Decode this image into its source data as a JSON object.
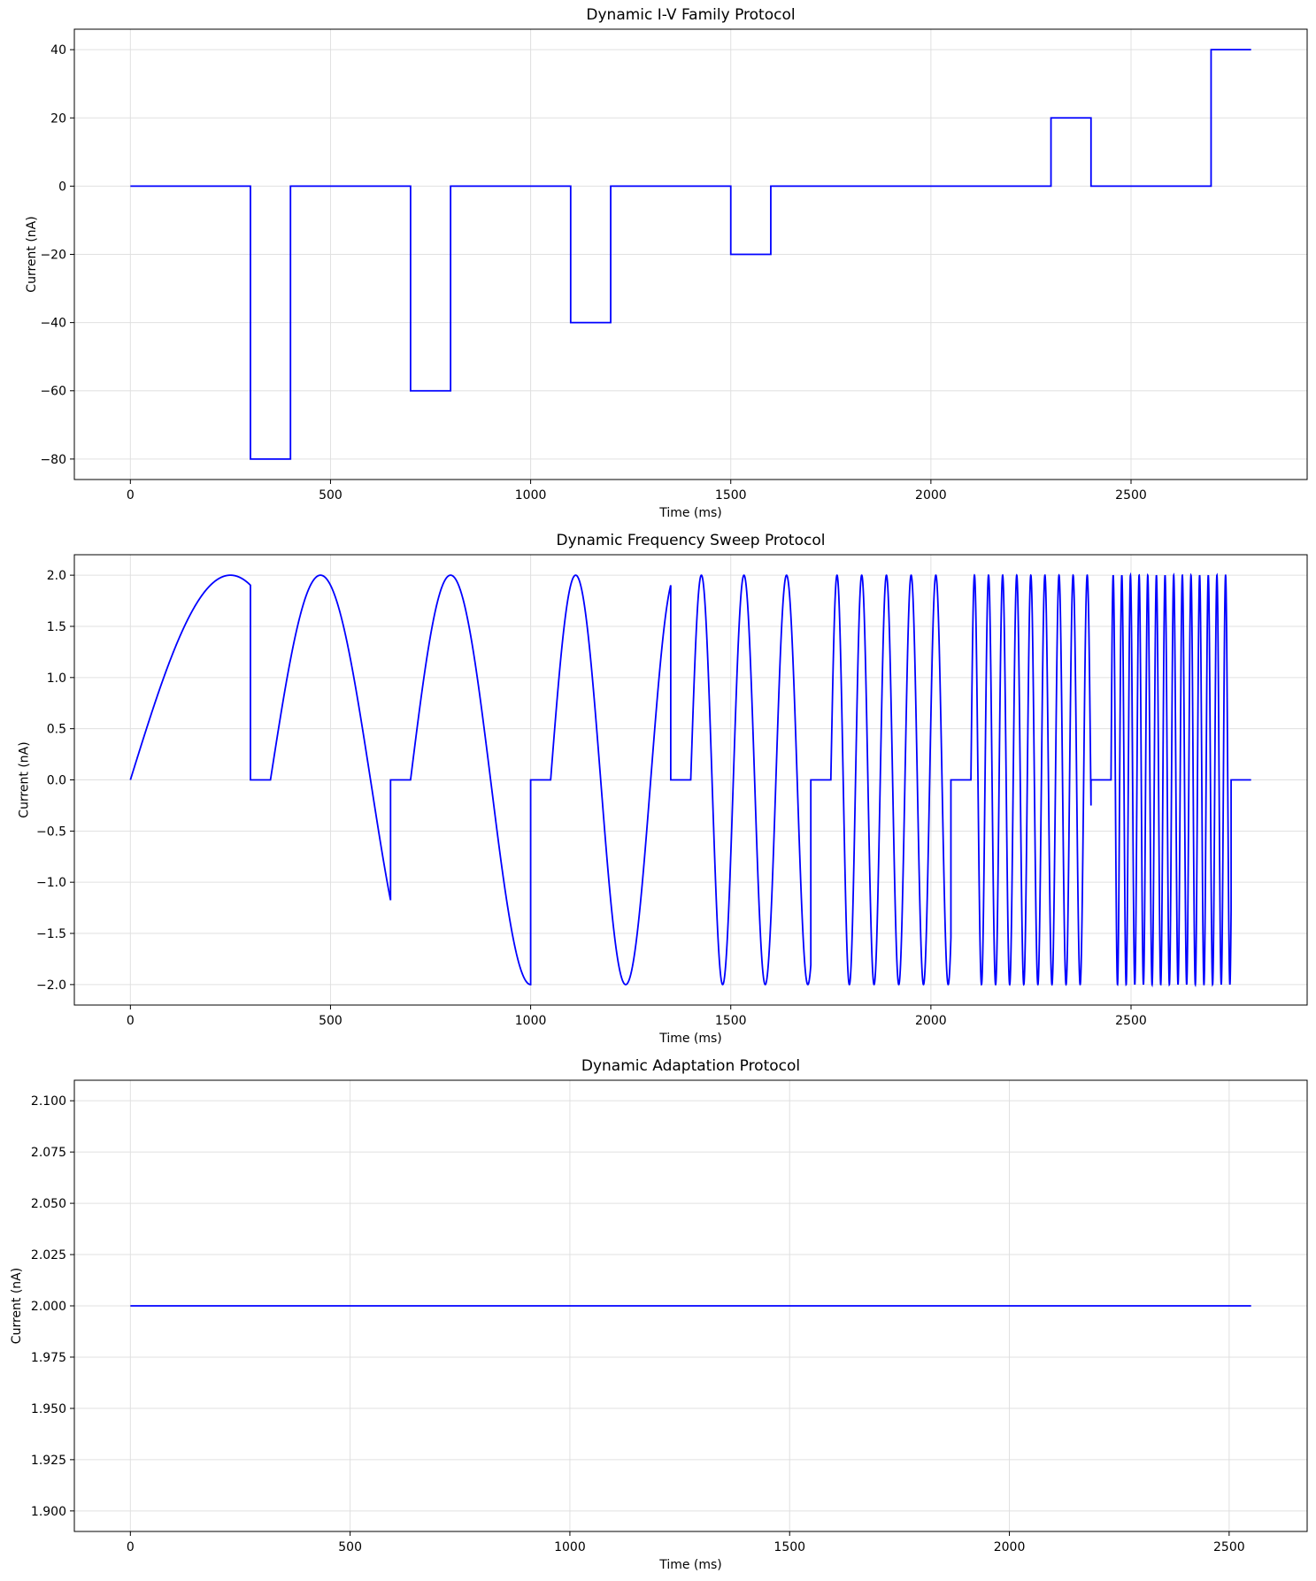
{
  "colors": {
    "line": "#0000ff",
    "grid": "#e0e0e0",
    "axes": "#000000"
  },
  "chart_data": [
    {
      "type": "line",
      "title": "Dynamic I-V Family Protocol",
      "xlabel": "Time (ms)",
      "ylabel": "Current (nA)",
      "xlim": [
        -140,
        2940
      ],
      "ylim": [
        -86,
        46
      ],
      "xticks": [
        0,
        500,
        1000,
        1500,
        2000,
        2500
      ],
      "xtick_labels": [
        "0",
        "500",
        "1000",
        "1500",
        "2000",
        "2500"
      ],
      "yticks": [
        -80,
        -60,
        -40,
        -20,
        0,
        20,
        40
      ],
      "ytick_labels": [
        "−80",
        "−60",
        "−40",
        "−20",
        "0",
        "20",
        "40"
      ],
      "grid": true,
      "series": [
        {
          "color": "#0000ff",
          "kind": "steps",
          "x": [
            0,
            300,
            300,
            400,
            400,
            700,
            700,
            800,
            800,
            1100,
            1100,
            1200,
            1200,
            1500,
            1500,
            1600,
            1600,
            2300,
            2300,
            2400,
            2400,
            2700,
            2700,
            2800
          ],
          "y": [
            0,
            0,
            -80,
            -80,
            0,
            0,
            -60,
            -60,
            0,
            0,
            -40,
            -40,
            0,
            0,
            -20,
            -20,
            0,
            0,
            20,
            20,
            0,
            0,
            40,
            40
          ]
        }
      ]
    },
    {
      "type": "line",
      "title": "Dynamic Frequency Sweep Protocol",
      "xlabel": "Time (ms)",
      "ylabel": "Current (nA)",
      "xlim": [
        -140,
        2940
      ],
      "ylim": [
        -2.2,
        2.2
      ],
      "xticks": [
        0,
        500,
        1000,
        1500,
        2000,
        2500
      ],
      "xtick_labels": [
        "0",
        "500",
        "1000",
        "1500",
        "2000",
        "2500"
      ],
      "yticks": [
        -2.0,
        -1.5,
        -1.0,
        -0.5,
        0.0,
        0.5,
        1.0,
        1.5,
        2.0
      ],
      "ytick_labels": [
        "−2.0",
        "−1.5",
        "−1.0",
        "−0.5",
        "0.0",
        "0.5",
        "1.0",
        "1.5",
        "2.0"
      ],
      "grid": true,
      "series": [
        {
          "color": "#0000ff",
          "kind": "sine_bursts",
          "amplitude": 2.0,
          "bursts": [
            {
              "start": 0,
              "end": 300,
              "freq_hz": 1
            },
            {
              "start": 350,
              "end": 650,
              "freq_hz": 2
            },
            {
              "start": 700,
              "end": 1000,
              "freq_hz": 2.5
            },
            {
              "start": 1050,
              "end": 1350,
              "freq_hz": 4
            },
            {
              "start": 1400,
              "end": 1700,
              "freq_hz": 9.4
            },
            {
              "start": 1750,
              "end": 2050,
              "freq_hz": 16.2
            },
            {
              "start": 2100,
              "end": 2400,
              "freq_hz": 28.4
            },
            {
              "start": 2450,
              "end": 2750,
              "freq_hz": 46.3
            }
          ],
          "end_x": 2800
        }
      ]
    },
    {
      "type": "line",
      "title": "Dynamic Adaptation Protocol",
      "xlabel": "Time (ms)",
      "ylabel": "Current (nA)",
      "xlim": [
        -127.5,
        2677.5
      ],
      "ylim": [
        1.89,
        2.11
      ],
      "xticks": [
        0,
        500,
        1000,
        1500,
        2000,
        2500
      ],
      "xtick_labels": [
        "0",
        "500",
        "1000",
        "1500",
        "2000",
        "2500"
      ],
      "yticks": [
        1.9,
        1.925,
        1.95,
        1.975,
        2.0,
        2.025,
        2.05,
        2.075,
        2.1
      ],
      "ytick_labels": [
        "1.900",
        "1.925",
        "1.950",
        "1.975",
        "2.000",
        "2.025",
        "2.050",
        "2.075",
        "2.100"
      ],
      "grid": true,
      "series": [
        {
          "color": "#0000ff",
          "kind": "steps",
          "x": [
            0,
            2550
          ],
          "y": [
            2.0,
            2.0
          ]
        }
      ]
    }
  ]
}
